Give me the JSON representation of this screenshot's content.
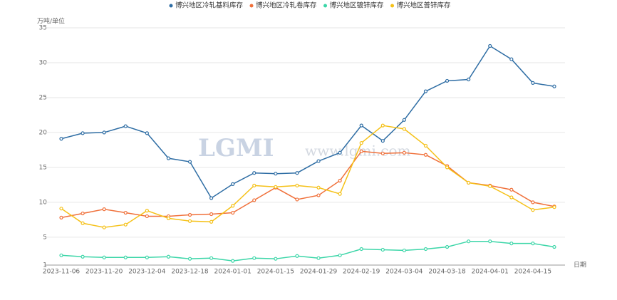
{
  "chart_data": {
    "type": "line",
    "y_axis_label": "万吨/单位",
    "x_axis_label": "日期",
    "watermark": "LGMI",
    "watermark_url": "www.lgmi.com",
    "categories": [
      "2023-11-06",
      null,
      "2023-11-20",
      null,
      "2023-12-04",
      null,
      "2023-12-18",
      null,
      "2024-01-01",
      null,
      "2024-01-15",
      null,
      "2024-01-29",
      null,
      "2024-02-19",
      null,
      "2024-03-04",
      null,
      "2024-03-18",
      null,
      "2024-04-01",
      null,
      "2024-04-15",
      null
    ],
    "series": [
      {
        "name": "博兴地区冷轧基料库存",
        "color": "#2e6da4",
        "values": [
          19.1,
          19.9,
          20.0,
          20.9,
          19.9,
          16.3,
          15.8,
          10.6,
          12.6,
          14.2,
          14.1,
          14.2,
          15.9,
          17.1,
          21.0,
          18.8,
          21.8,
          25.9,
          27.4,
          27.6,
          32.4,
          30.5,
          27.1,
          26.6
        ]
      },
      {
        "name": "博兴地区冷轧卷库存",
        "color": "#f0703a",
        "values": [
          7.8,
          8.4,
          9.0,
          8.5,
          8.0,
          8.0,
          8.2,
          8.3,
          8.5,
          10.3,
          12.1,
          10.4,
          11.0,
          13.1,
          17.3,
          17.0,
          17.1,
          16.8,
          15.2,
          12.8,
          12.4,
          11.8,
          10.0,
          9.4
        ]
      },
      {
        "name": "博兴地区镀锌库存",
        "color": "#3cd6a8",
        "values": [
          2.4,
          2.2,
          2.1,
          2.1,
          2.1,
          2.2,
          1.9,
          2.0,
          1.6,
          2.0,
          1.9,
          2.3,
          2.0,
          2.4,
          3.3,
          3.2,
          3.1,
          3.3,
          3.6,
          4.4,
          4.4,
          4.1,
          4.1,
          3.6
        ]
      },
      {
        "name": "博兴地区普锌库存",
        "color": "#f5c118",
        "values": [
          9.1,
          7.0,
          6.4,
          6.8,
          8.8,
          7.7,
          7.3,
          7.2,
          9.5,
          12.4,
          12.2,
          12.4,
          12.1,
          11.2,
          18.5,
          21.0,
          20.5,
          18.1,
          15.0,
          12.8,
          12.3,
          10.7,
          8.9,
          9.3
        ]
      }
    ],
    "ylim": [
      1,
      35
    ],
    "yticks": [
      1,
      5,
      10,
      15,
      20,
      25,
      30,
      35
    ],
    "grid": true,
    "legend": "top"
  }
}
